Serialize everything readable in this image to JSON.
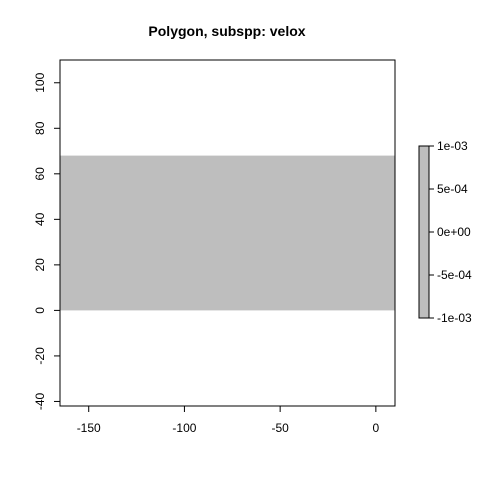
{
  "chart_data": {
    "type": "heatmap",
    "title": "Polygon, subspp: velox",
    "xlabel": "",
    "ylabel": "",
    "xlim": [
      -165,
      10
    ],
    "ylim": [
      -42,
      110
    ],
    "x_ticks": [
      -150,
      -100,
      -50,
      0
    ],
    "y_ticks": [
      -40,
      -20,
      0,
      20,
      40,
      60,
      80,
      100
    ],
    "grid": false,
    "regions": [
      {
        "x0": -165,
        "x1": 10,
        "y0": 0,
        "y1": 68,
        "value": 0,
        "color": "#bebebe"
      }
    ],
    "legend": {
      "placement": "right",
      "range": [
        -0.001,
        0.001
      ],
      "color": "#bebebe",
      "ticks": [
        {
          "value": 0.001,
          "label": "1e-03"
        },
        {
          "value": 0.0005,
          "label": "5e-04"
        },
        {
          "value": 0,
          "label": "0e+00"
        },
        {
          "value": -0.0005,
          "label": "-5e-04"
        },
        {
          "value": -0.001,
          "label": "-1e-03"
        }
      ]
    }
  }
}
